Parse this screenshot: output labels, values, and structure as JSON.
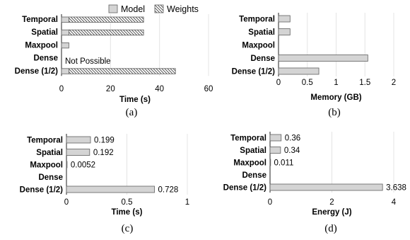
{
  "colors": {
    "bar_fill": "#d4d4d4",
    "bar_stroke": "#5f5f5f",
    "grid": "#e4e4e4",
    "axis": "#222222",
    "hatch": "#444444"
  },
  "legend": {
    "model": "Model",
    "weights": "Weights"
  },
  "chart_data": [
    {
      "type": "bar",
      "orientation": "horizontal",
      "stacked": true,
      "panel_label": "(a)",
      "categories": [
        "Temporal",
        "Spatial",
        "Maxpool",
        "Dense",
        "Dense (1/2)"
      ],
      "series": [
        {
          "name": "Model",
          "values": [
            3,
            3,
            3,
            0,
            3
          ]
        },
        {
          "name": "Weights",
          "values": [
            30.5,
            30.5,
            0,
            0,
            43.5
          ]
        }
      ],
      "annotations": [
        {
          "category": "Dense",
          "text": "Not Possible"
        }
      ],
      "xlabel": "Time (s)",
      "xlim": [
        0,
        60
      ],
      "xticks": [
        0,
        20,
        40,
        60
      ],
      "grid": "vertical",
      "legend": "top"
    },
    {
      "type": "bar",
      "orientation": "horizontal",
      "panel_label": "(b)",
      "categories": [
        "Temporal",
        "Spatial",
        "Maxpool",
        "Dense",
        "Dense (1/2)"
      ],
      "values": [
        0.2,
        0.2,
        0,
        1.55,
        0.7
      ],
      "xlabel": "Memory (GB)",
      "xlim": [
        0,
        2
      ],
      "xticks": [
        0,
        0.5,
        1,
        1.5,
        2
      ],
      "xtick_labels": [
        "0",
        "0.5",
        "1",
        "1.5",
        "2"
      ],
      "grid": "vertical"
    },
    {
      "type": "bar",
      "orientation": "horizontal",
      "panel_label": "(c)",
      "categories": [
        "Temporal",
        "Spatial",
        "Maxpool",
        "Dense",
        "Dense (1/2)"
      ],
      "values": [
        0.199,
        0.192,
        0.0052,
        null,
        0.728
      ],
      "data_labels": [
        "0.199",
        "0.192",
        "0.0052",
        "",
        "0.728"
      ],
      "xlabel": "Time (s)",
      "xlim": [
        0,
        1
      ],
      "xticks": [
        0,
        0.5,
        1
      ],
      "xtick_labels": [
        "0",
        "0.5",
        "1"
      ],
      "grid": "vertical"
    },
    {
      "type": "bar",
      "orientation": "horizontal",
      "panel_label": "(d)",
      "categories": [
        "Temporal",
        "Spatial",
        "Maxpool",
        "Dense",
        "Dense (1/2)"
      ],
      "values": [
        0.36,
        0.34,
        0.011,
        null,
        3.638
      ],
      "data_labels": [
        "0.36",
        "0.34",
        "0.011",
        "",
        "3.638"
      ],
      "xlabel": "Energy (J)",
      "xlim": [
        0,
        4
      ],
      "xticks": [
        0,
        2,
        4
      ],
      "xtick_labels": [
        "0",
        "2",
        "4"
      ],
      "grid": "vertical"
    }
  ]
}
